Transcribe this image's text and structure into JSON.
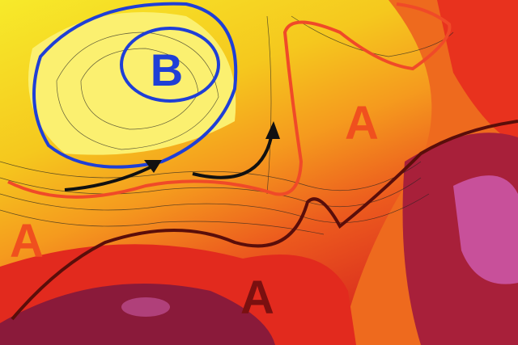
{
  "map": {
    "pressure_labels": [
      {
        "id": "low-center",
        "text": "B",
        "color": "#1f3fd6"
      },
      {
        "id": "high-east",
        "text": "A",
        "color": "#f0501e"
      },
      {
        "id": "high-west",
        "text": "A",
        "color": "#f0501e"
      },
      {
        "id": "high-south",
        "text": "A",
        "color": "#7a1010"
      }
    ],
    "colors": {
      "low_contour": "#1f3fd6",
      "ridge_line_red": "#f04a28",
      "ridge_line_dark": "#5a0e0a",
      "flow_arrows": "#111111",
      "yellow": "#f5e61c",
      "orange": "#f59a1e",
      "red": "#e8321e",
      "maroon": "#8a1a3a",
      "magenta": "#c8509a"
    }
  }
}
